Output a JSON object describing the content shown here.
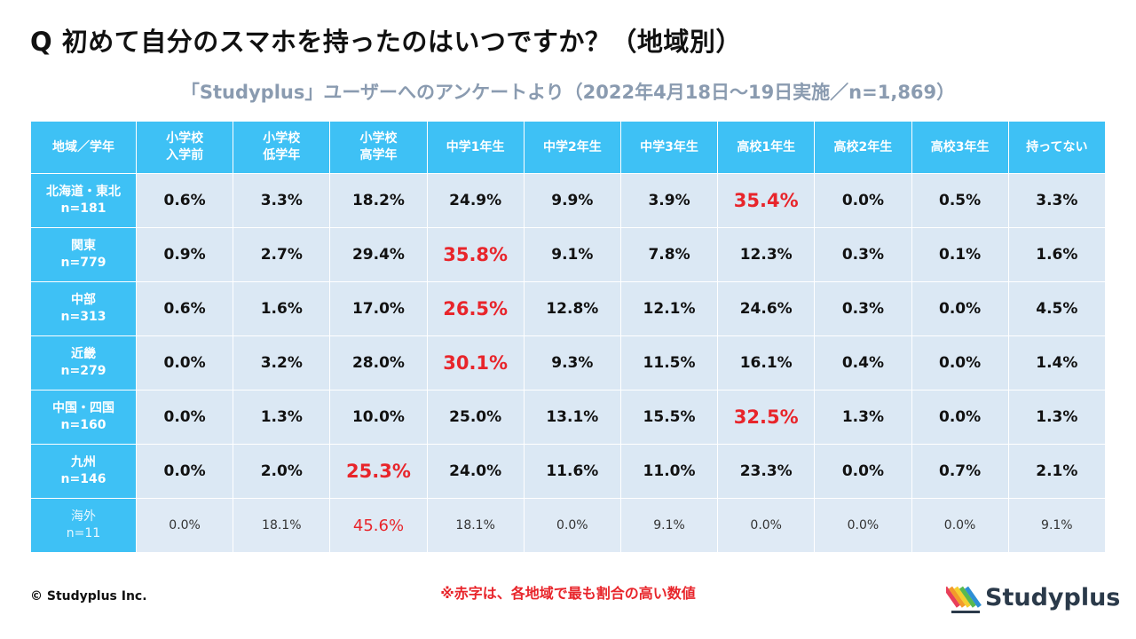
{
  "title": "Q 初めて自分のスマホを持ったのはいつですか？（地域別）",
  "subtitle": "「Studyplus」ユーザーへのアンケートより（2022年4月18日〜19日実施／n=1,869）",
  "chart_data": {
    "type": "table",
    "columns": [
      {
        "line1": "地域／学年",
        "line2": ""
      },
      {
        "line1": "小学校",
        "line2": "入学前"
      },
      {
        "line1": "小学校",
        "line2": "低学年"
      },
      {
        "line1": "小学校",
        "line2": "高学年"
      },
      {
        "line1": "中学1年生",
        "line2": ""
      },
      {
        "line1": "中学2年生",
        "line2": ""
      },
      {
        "line1": "中学3年生",
        "line2": ""
      },
      {
        "line1": "高校1年生",
        "line2": ""
      },
      {
        "line1": "高校2年生",
        "line2": ""
      },
      {
        "line1": "高校3年生",
        "line2": ""
      },
      {
        "line1": "持ってない",
        "line2": ""
      }
    ],
    "rows": [
      {
        "region": "北海道・東北",
        "n": "n=181",
        "values": [
          "0.6%",
          "3.3%",
          "18.2%",
          "24.9%",
          "9.9%",
          "3.9%",
          "35.4%",
          "0.0%",
          "0.5%",
          "3.3%"
        ],
        "max_index": 6
      },
      {
        "region": "関東",
        "n": "n=779",
        "values": [
          "0.9%",
          "2.7%",
          "29.4%",
          "35.8%",
          "9.1%",
          "7.8%",
          "12.3%",
          "0.3%",
          "0.1%",
          "1.6%"
        ],
        "max_index": 3
      },
      {
        "region": "中部",
        "n": "n=313",
        "values": [
          "0.6%",
          "1.6%",
          "17.0%",
          "26.5%",
          "12.8%",
          "12.1%",
          "24.6%",
          "0.3%",
          "0.0%",
          "4.5%"
        ],
        "max_index": 3
      },
      {
        "region": "近畿",
        "n": "n=279",
        "values": [
          "0.0%",
          "3.2%",
          "28.0%",
          "30.1%",
          "9.3%",
          "11.5%",
          "16.1%",
          "0.4%",
          "0.0%",
          "1.4%"
        ],
        "max_index": 3
      },
      {
        "region": "中国・四国",
        "n": "n=160",
        "values": [
          "0.0%",
          "1.3%",
          "10.0%",
          "25.0%",
          "13.1%",
          "15.5%",
          "32.5%",
          "1.3%",
          "0.0%",
          "1.3%"
        ],
        "max_index": 6
      },
      {
        "region": "九州",
        "n": "n=146",
        "values": [
          "0.0%",
          "2.0%",
          "25.3%",
          "24.0%",
          "11.6%",
          "11.0%",
          "23.3%",
          "0.0%",
          "0.7%",
          "2.1%"
        ],
        "max_index": 2
      },
      {
        "region": "海外",
        "n": "n=11",
        "values": [
          "0.0%",
          "18.1%",
          "45.6%",
          "18.1%",
          "0.0%",
          "9.1%",
          "0.0%",
          "0.0%",
          "0.0%",
          "9.1%"
        ],
        "max_index": 2,
        "muted": true
      }
    ]
  },
  "footer": {
    "copyright": "© Studyplus Inc.",
    "note": "※赤字は、各地域で最も割合の高い数値",
    "logo_text": "Studyplus"
  },
  "colors": {
    "header_bg": "#3ec1f5",
    "cell_bg": "#dbe8f4",
    "highlight": "#e8252b",
    "subtitle": "#8a9bb0"
  }
}
